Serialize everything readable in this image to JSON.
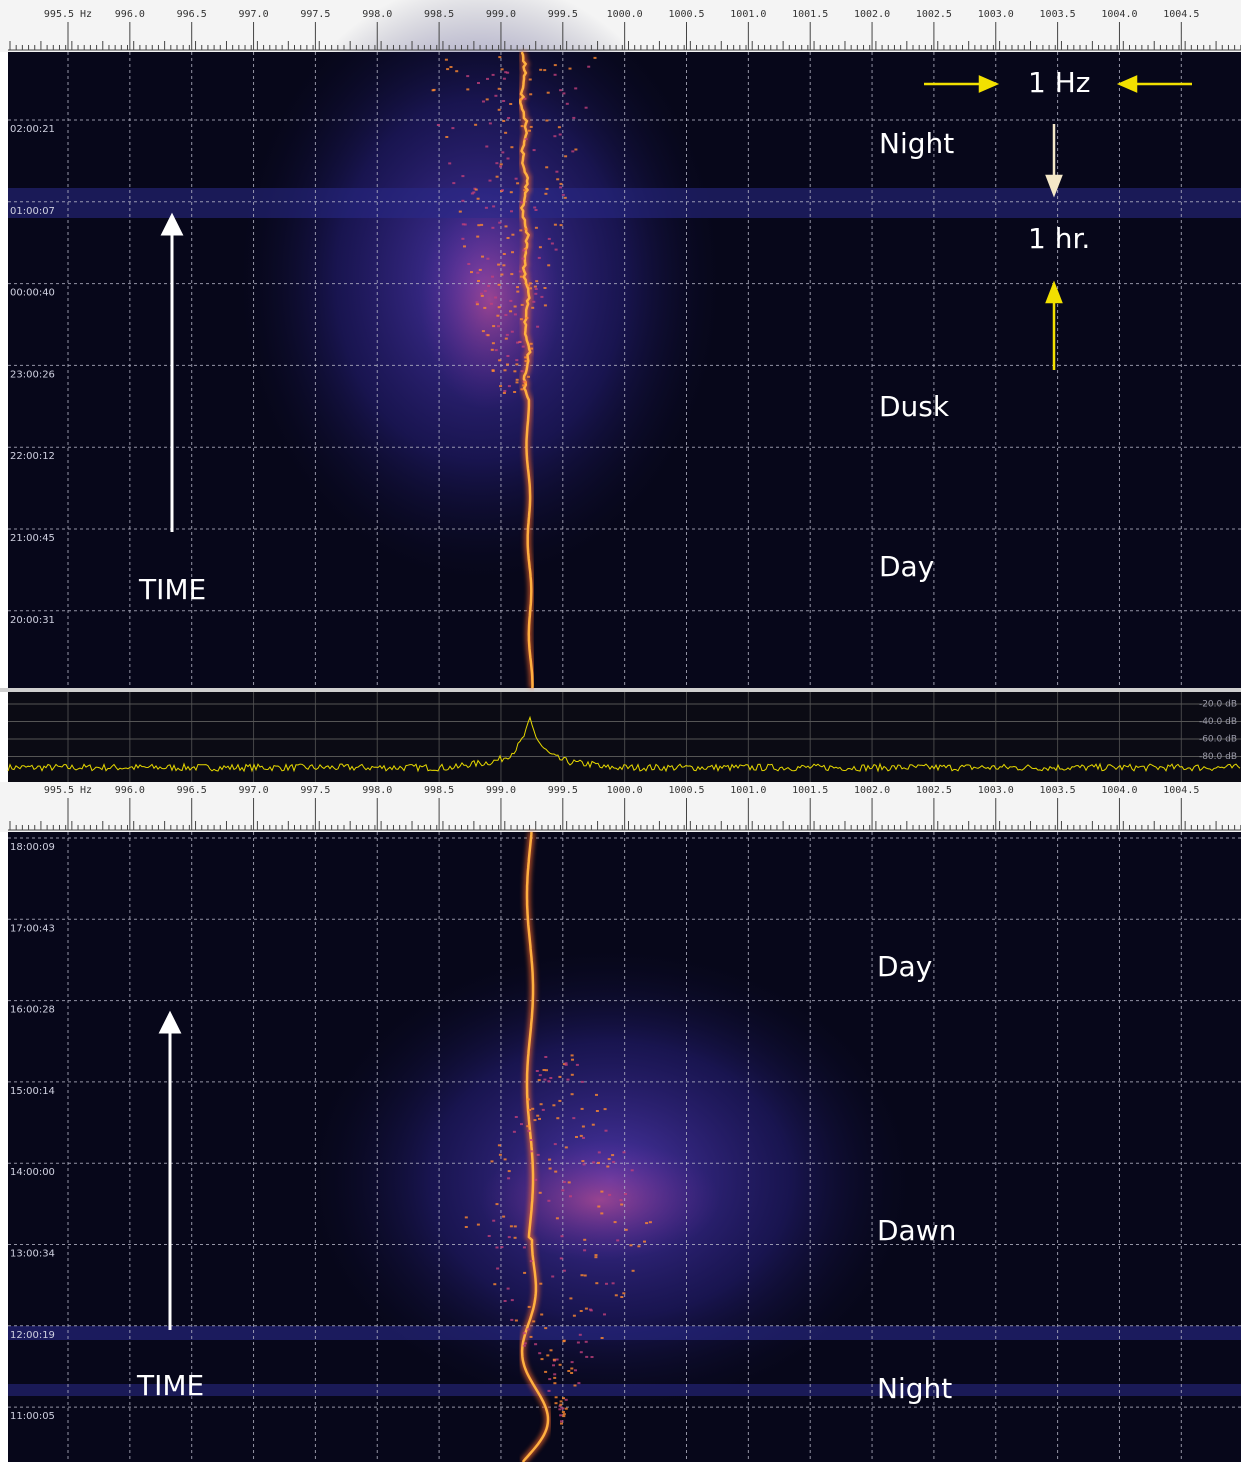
{
  "freq_axis": {
    "labels": [
      "995.5 Hz",
      "996.0",
      "996.5",
      "997.0",
      "997.5",
      "998.0",
      "998.5",
      "999.0",
      "999.5",
      "1000.0",
      "1000.5",
      "1001.0",
      "1001.5",
      "1002.0",
      "1002.5",
      "1003.0",
      "1003.5",
      "1004.0",
      "1004.5"
    ]
  },
  "top_panel": {
    "time_labels": [
      "02:00:21",
      "01:00:07",
      "00:00:40",
      "23:00:26",
      "22:00:12",
      "21:00:45",
      "20:00:31"
    ],
    "annotations": {
      "night": "Night",
      "dusk": "Dusk",
      "day": "Day",
      "time": "TIME",
      "freq_scale": "1 Hz",
      "time_scale": "1 hr."
    }
  },
  "spectrum": {
    "db_labels": [
      "-20.0 dB",
      "-40.0 dB",
      "-60.0 dB",
      "-80.0 dB"
    ]
  },
  "bottom_panel": {
    "time_labels": [
      "18:00:09",
      "17:00:43",
      "16:00:28",
      "15:00:14",
      "14:00:00",
      "13:00:34",
      "12:00:19",
      "11:00:05"
    ],
    "annotations": {
      "day": "Day",
      "dawn": "Dawn",
      "time": "TIME",
      "night": "Night"
    }
  }
}
